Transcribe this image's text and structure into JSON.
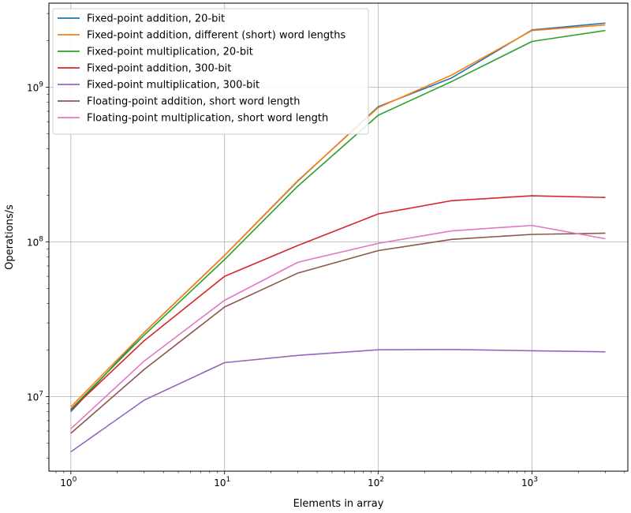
{
  "chart_data": {
    "type": "line",
    "title": "",
    "xlabel": "Elements in array",
    "ylabel": "Operations/s",
    "xscale": "log",
    "yscale": "log",
    "xlim": [
      0.72,
      4200
    ],
    "ylim": [
      3300000,
      3500000000
    ],
    "grid": true,
    "legend_position": "top-left",
    "x_ticks": [
      {
        "value": 1,
        "base": "10",
        "exp": "0"
      },
      {
        "value": 10,
        "base": "10",
        "exp": "1"
      },
      {
        "value": 100,
        "base": "10",
        "exp": "2"
      },
      {
        "value": 1000,
        "base": "10",
        "exp": "3"
      }
    ],
    "y_ticks": [
      {
        "value": 10000000,
        "base": "10",
        "exp": "7"
      },
      {
        "value": 100000000,
        "base": "10",
        "exp": "8"
      },
      {
        "value": 1000000000,
        "base": "10",
        "exp": "9"
      }
    ],
    "x": [
      1,
      3,
      10,
      30,
      100,
      300,
      1000,
      3000
    ],
    "series": [
      {
        "name": "Fixed-point addition, 20-bit",
        "color": "#1f77b4",
        "values": [
          8000000,
          26000000,
          82000000,
          248000000,
          750000000,
          1150000000,
          2350000000,
          2600000000
        ]
      },
      {
        "name": "Fixed-point addition, different (short) word lengths",
        "color": "#ff7f0e",
        "values": [
          8600000,
          26000000,
          82000000,
          250000000,
          740000000,
          1200000000,
          2330000000,
          2530000000
        ]
      },
      {
        "name": "Fixed-point multiplication, 20-bit",
        "color": "#2ca02c",
        "values": [
          8300000,
          25000000,
          77000000,
          230000000,
          660000000,
          1090000000,
          1980000000,
          2330000000
        ]
      },
      {
        "name": "Fixed-point addition, 300-bit",
        "color": "#d62728",
        "values": [
          8200000,
          23000000,
          60000000,
          95000000,
          152000000,
          185000000,
          199000000,
          194000000
        ]
      },
      {
        "name": "Fixed-point multiplication, 300-bit",
        "color": "#9467bd",
        "values": [
          4400000,
          9500000,
          16600000,
          18500000,
          20100000,
          20200000,
          19800000,
          19500000
        ]
      },
      {
        "name": "Floating-point addition, short word length",
        "color": "#8c564b",
        "values": [
          5800000,
          15000000,
          38000000,
          63000000,
          88000000,
          104000000,
          112000000,
          114000000
        ]
      },
      {
        "name": "Floating-point multiplication, short word length",
        "color": "#e377c2",
        "values": [
          6200000,
          17000000,
          42000000,
          74000000,
          98000000,
          118000000,
          128000000,
          105000000
        ]
      }
    ]
  }
}
